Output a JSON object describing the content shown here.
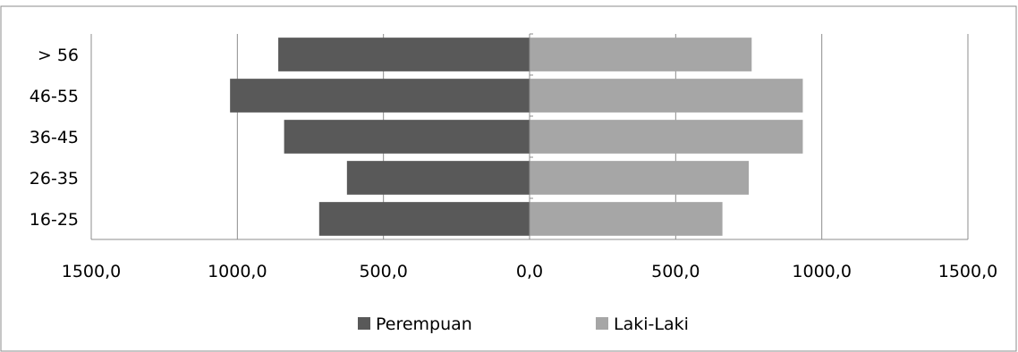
{
  "chart_data": {
    "type": "bar",
    "orientation": "horizontal",
    "layout": "population-pyramid",
    "categories": [
      "16-25",
      "26-35",
      "36-45",
      "46-55",
      "> 56"
    ],
    "series": [
      {
        "name": "Perempuan",
        "values": [
          720,
          625,
          840,
          1025,
          860
        ],
        "color": "#595959"
      },
      {
        "name": "Laki-Laki",
        "values": [
          660,
          750,
          935,
          935,
          760
        ],
        "color": "#a6a6a6"
      }
    ],
    "x_tick_labels": [
      "1500,0",
      "1000,0",
      "500,0",
      "0,0",
      "500,0",
      "1000,0",
      "1500,0"
    ],
    "xlim": [
      -1500,
      1500
    ],
    "grid": "vertical",
    "legend": "bottom"
  }
}
